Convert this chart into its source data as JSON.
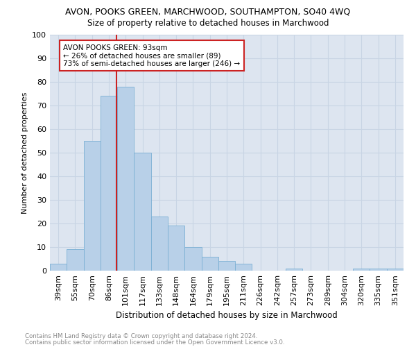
{
  "title": "AVON, POOKS GREEN, MARCHWOOD, SOUTHAMPTON, SO40 4WQ",
  "subtitle": "Size of property relative to detached houses in Marchwood",
  "xlabel": "Distribution of detached houses by size in Marchwood",
  "ylabel": "Number of detached properties",
  "categories": [
    "39sqm",
    "55sqm",
    "70sqm",
    "86sqm",
    "101sqm",
    "117sqm",
    "133sqm",
    "148sqm",
    "164sqm",
    "179sqm",
    "195sqm",
    "211sqm",
    "226sqm",
    "242sqm",
    "257sqm",
    "273sqm",
    "289sqm",
    "304sqm",
    "320sqm",
    "335sqm",
    "351sqm"
  ],
  "values": [
    3,
    9,
    55,
    74,
    78,
    50,
    23,
    19,
    10,
    6,
    4,
    3,
    0,
    0,
    1,
    0,
    0,
    0,
    1,
    1,
    1
  ],
  "bar_color": "#b8d0e8",
  "bar_edge_color": "#7aafd4",
  "annotation_text": "AVON POOKS GREEN: 93sqm\n← 26% of detached houses are smaller (89)\n73% of semi-detached houses are larger (246) →",
  "annotation_box_color": "#ffffff",
  "annotation_box_edge": "#cc2222",
  "grid_color": "#c8d4e4",
  "background_color": "#dde5f0",
  "ylim": [
    0,
    100
  ],
  "yticks": [
    0,
    10,
    20,
    30,
    40,
    50,
    60,
    70,
    80,
    90,
    100
  ],
  "red_line_x": 3.47,
  "footer1": "Contains HM Land Registry data © Crown copyright and database right 2024.",
  "footer2": "Contains public sector information licensed under the Open Government Licence v3.0."
}
